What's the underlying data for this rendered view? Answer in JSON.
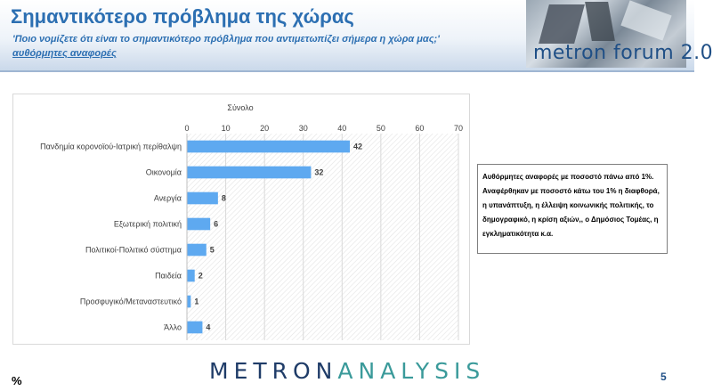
{
  "header": {
    "title": "Σημαντικότερο πρόβλημα της χώρας",
    "subtitle": "'Ποιο νομίζετε ότι  είναι το σημαντικότερο πρόβλημα που αντιμετωπίζει σήμερα η χώρα μας;'",
    "subtitle2": "αυθόρμητες αναφορές",
    "logo_text": "metron forum 2.0"
  },
  "chart_data": {
    "type": "bar",
    "orientation": "horizontal",
    "title": "Σύνολο",
    "categories": [
      "Πανδημία κορονοϊού-Ιατρική περίθαλψη",
      "Οικονομία",
      "Ανεργία",
      "Εξωτερική πολιτική",
      "Πολιτικοί-Πολιτικό σύστημα",
      "Παιδεία",
      "Προσφυγικό/Μεταναστευτικό",
      "Άλλο"
    ],
    "values": [
      42,
      32,
      8,
      6,
      5,
      2,
      1,
      4
    ],
    "xlim": [
      0,
      70
    ],
    "xticks": [
      0,
      10,
      20,
      30,
      40,
      50,
      60,
      70
    ],
    "bar_color": "#5ea9f0",
    "grid": true,
    "axis_position": "top"
  },
  "note": {
    "lines": [
      "Αυθόρμητες αναφορές με ποσοστό πάνω από 1%.",
      "Αναφέρθηκαν με ποσοστό κάτω του 1% η διαφθορά,",
      "η υπανάπτυξη, η έλλειψη κοινωνικής πολιτικής, το",
      "δημογραφικό, η κρίση αξιών,, ο Δημόσιος Τομέας, η",
      "εγκληματικότητα κ.α."
    ]
  },
  "footer": {
    "percent_sign": "%",
    "brand_part1": "METRON",
    "brand_part2": "ANALYSIS",
    "page_number": "5"
  }
}
